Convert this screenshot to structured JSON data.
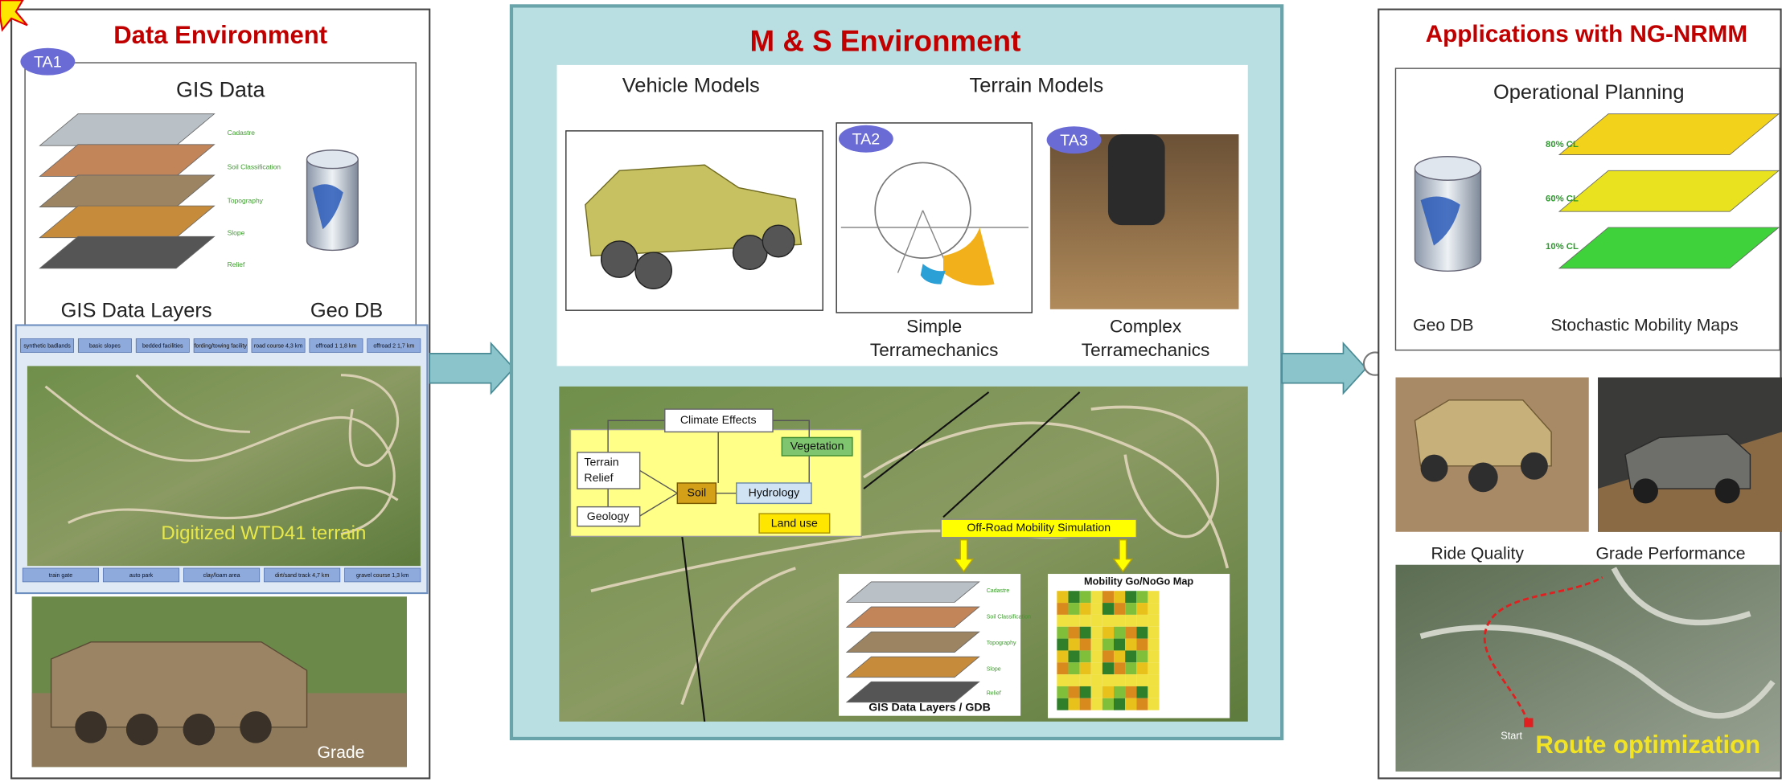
{
  "data_environment": {
    "title": "Data Environment",
    "badge": "TA1",
    "gis_title": "GIS Data",
    "layer_labels": [
      "Cadastre",
      "Soil Classification",
      "Topography",
      "Slope",
      "Relief"
    ],
    "gis_layers_label": "GIS Data Layers",
    "geodb_label": "Geo DB",
    "map_labels_top": [
      "synthetic badlands",
      "basic slopes",
      "bedded facilities",
      "fording/towing facility",
      "road course 4,3 km",
      "offroad 1 1,8 km",
      "offroad 2 1,7 km"
    ],
    "map_labels_bottom": [
      "train gate",
      "auto park",
      "clay/loam area",
      "dirt/sand track 4,7 km",
      "gravel course 1,3 km"
    ],
    "terrain_caption": "Digitized WTD41 terrain",
    "photo_caption": "Grade"
  },
  "ms_environment": {
    "title": "M & S Environment",
    "vehicle_models": "Vehicle Models",
    "terrain_models": "Terrain Models",
    "ta2": "TA2",
    "ta3": "TA3",
    "simple": [
      "Simple",
      "Terramechanics"
    ],
    "complex": [
      "Complex",
      "Terramechanics"
    ],
    "flow": {
      "climate": "Climate Effects",
      "terrain_relief": [
        "Terrain",
        "Relief"
      ],
      "soil": "Soil",
      "hydrology": "Hydrology",
      "geology": "Geology",
      "vegetation": "Vegetation",
      "land_use": "Land use"
    },
    "simulation": "Off-Road Mobility Simulation",
    "layer_labels": [
      "Cadastre",
      "Soil Classification",
      "Topography",
      "Slope",
      "Relief"
    ],
    "gis_layers_label": "GIS Data Layers / GDB",
    "gonogo_title": "Mobility Go/NoGo Map"
  },
  "applications": {
    "title": "Applications with NG-NRMM",
    "operational_planning": "Operational Planning",
    "confidence_levels": [
      "80% CL",
      "60% CL",
      "10% CL"
    ],
    "geodb_label": "Geo DB",
    "stochastic_label": "Stochastic Mobility Maps",
    "ride_quality": "Ride Quality",
    "grade_performance": "Grade Performance",
    "route_start": "Start",
    "route_label": "Route optimization"
  }
}
